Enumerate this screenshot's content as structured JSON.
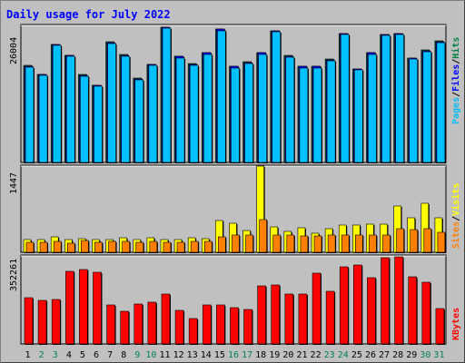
{
  "title": "Daily usage for July 2022",
  "colors": {
    "hits": "#008040",
    "files": "#0000ff",
    "pages": "#00c0ff",
    "visits": "#ffff00",
    "sites": "#ff8000",
    "kbytes": "#ff0000",
    "weekday_label": "#000000",
    "weekend_label": "#00805c",
    "panel_bg": "#c0c0c0"
  },
  "chart_data": [
    {
      "type": "bar",
      "panel": "hits-files-pages",
      "max_label": "26004",
      "legend": [
        "Pages",
        "/",
        "Files",
        "/",
        "Hits"
      ],
      "x": [
        "1",
        "2",
        "3",
        "4",
        "5",
        "6",
        "7",
        "8",
        "9",
        "10",
        "11",
        "12",
        "13",
        "14",
        "15",
        "16",
        "17",
        "18",
        "19",
        "20",
        "21",
        "22",
        "23",
        "24",
        "25",
        "26",
        "27",
        "28",
        "29",
        "30",
        "31"
      ],
      "weekend": [
        "2",
        "3",
        "9",
        "10",
        "16",
        "17",
        "23",
        "24",
        "30",
        "31"
      ],
      "series": [
        {
          "name": "Hits",
          "values": [
            18500,
            16900,
            22600,
            20500,
            16800,
            14800,
            23000,
            20600,
            16100,
            18800,
            25900,
            20300,
            18900,
            21000,
            25500,
            18400,
            19200,
            21000,
            25200,
            20400,
            18400,
            18400,
            19700,
            24700,
            17900,
            21000,
            24500,
            24700,
            20000,
            21500,
            23200
          ]
        },
        {
          "name": "Files",
          "values": [
            18400,
            16800,
            22500,
            20400,
            16700,
            14700,
            22900,
            20500,
            16000,
            18700,
            25800,
            20200,
            18800,
            20900,
            25400,
            18300,
            19100,
            20900,
            25100,
            20300,
            18300,
            18300,
            19600,
            24600,
            17800,
            20900,
            24400,
            24600,
            19900,
            21400,
            23100
          ]
        },
        {
          "name": "Pages",
          "values": [
            18200,
            16600,
            22300,
            20200,
            16500,
            14500,
            22700,
            20300,
            15800,
            18500,
            25600,
            20000,
            18600,
            20700,
            25200,
            18100,
            18900,
            20700,
            24900,
            20100,
            18100,
            18100,
            19400,
            24400,
            17600,
            20700,
            24200,
            24400,
            19700,
            21200,
            22900
          ]
        }
      ]
    },
    {
      "type": "bar",
      "panel": "visits-sites",
      "max_label": "1447",
      "legend": [
        "Sites",
        "/",
        "Visits"
      ],
      "x": [
        "1",
        "2",
        "3",
        "4",
        "5",
        "6",
        "7",
        "8",
        "9",
        "10",
        "11",
        "12",
        "13",
        "14",
        "15",
        "16",
        "17",
        "18",
        "19",
        "20",
        "21",
        "22",
        "23",
        "24",
        "25",
        "26",
        "27",
        "28",
        "29",
        "30",
        "31"
      ],
      "series": [
        {
          "name": "Visits",
          "values": [
            210,
            210,
            260,
            210,
            230,
            215,
            215,
            240,
            210,
            240,
            210,
            220,
            240,
            230,
            540,
            500,
            370,
            1470,
            430,
            360,
            420,
            320,
            400,
            460,
            460,
            470,
            470,
            790,
            580,
            830,
            590
          ]
        },
        {
          "name": "Sites",
          "values": [
            170,
            170,
            190,
            160,
            200,
            170,
            180,
            180,
            170,
            190,
            170,
            170,
            190,
            190,
            260,
            300,
            300,
            550,
            300,
            300,
            270,
            270,
            300,
            300,
            300,
            300,
            300,
            400,
            390,
            400,
            340
          ]
        }
      ]
    },
    {
      "type": "bar",
      "panel": "kbytes",
      "max_label": "352261",
      "legend": [
        "KBytes"
      ],
      "x": [
        "1",
        "2",
        "3",
        "4",
        "5",
        "6",
        "7",
        "8",
        "9",
        "10",
        "11",
        "12",
        "13",
        "14",
        "15",
        "16",
        "17",
        "18",
        "19",
        "20",
        "21",
        "22",
        "23",
        "24",
        "25",
        "26",
        "27",
        "28",
        "29",
        "30",
        "31"
      ],
      "series": [
        {
          "name": "KBytes",
          "values": [
            187000,
            177000,
            180000,
            293000,
            302000,
            291000,
            156000,
            131000,
            161000,
            168000,
            201000,
            136000,
            103000,
            157000,
            157000,
            147000,
            138000,
            234000,
            238000,
            200000,
            200000,
            285000,
            212000,
            312000,
            320000,
            268000,
            350000,
            352000,
            272000,
            248000,
            143000
          ]
        }
      ]
    }
  ]
}
